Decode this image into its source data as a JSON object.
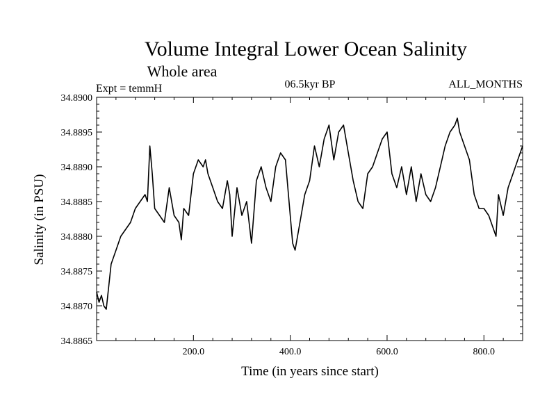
{
  "chart_data": {
    "type": "line",
    "title": "Volume Integral Lower Ocean Salinity",
    "subtitle": "Whole area",
    "left_label": "Expt = temmH",
    "center_label": "06.5kyr BP",
    "right_label": "ALL_MONTHS",
    "xlabel": "Time (in years since start)",
    "ylabel": "Salinity (in PSU)",
    "xlim": [
      0,
      880
    ],
    "ylim": [
      34.8865,
      34.89
    ],
    "x_ticks": [
      200,
      400,
      600,
      800
    ],
    "x_tick_labels": [
      "200.0",
      "400.0",
      "600.0",
      "800.0"
    ],
    "y_ticks": [
      34.8865,
      34.887,
      34.8875,
      34.888,
      34.8885,
      34.889,
      34.8895,
      34.89
    ],
    "y_tick_labels": [
      "34.8865",
      "34.8870",
      "34.8875",
      "34.8880",
      "34.8885",
      "34.8890",
      "34.8895",
      "34.8900"
    ],
    "grid": false,
    "series": [
      {
        "name": "Salinity",
        "color": "#000000",
        "x": [
          0,
          5,
          10,
          15,
          20,
          30,
          40,
          50,
          60,
          70,
          80,
          90,
          100,
          105,
          110,
          115,
          120,
          130,
          140,
          150,
          160,
          170,
          175,
          180,
          190,
          200,
          210,
          220,
          225,
          230,
          240,
          250,
          260,
          270,
          275,
          280,
          290,
          300,
          310,
          320,
          330,
          340,
          350,
          360,
          370,
          380,
          390,
          400,
          405,
          410,
          420,
          430,
          440,
          450,
          460,
          470,
          480,
          490,
          500,
          510,
          520,
          530,
          540,
          550,
          560,
          570,
          580,
          590,
          600,
          610,
          620,
          630,
          640,
          650,
          660,
          670,
          680,
          690,
          700,
          710,
          720,
          730,
          740,
          745,
          750,
          760,
          770,
          780,
          790,
          800,
          810,
          820,
          825,
          830,
          840,
          850,
          860,
          870,
          880
        ],
        "values": [
          34.8872,
          34.88705,
          34.88715,
          34.887,
          34.88695,
          34.8876,
          34.8878,
          34.888,
          34.8881,
          34.8882,
          34.8884,
          34.8885,
          34.8886,
          34.8885,
          34.8893,
          34.8889,
          34.8884,
          34.8883,
          34.8882,
          34.8887,
          34.8883,
          34.8882,
          34.88795,
          34.8884,
          34.8883,
          34.8889,
          34.8891,
          34.889,
          34.8891,
          34.8889,
          34.8887,
          34.8885,
          34.8884,
          34.8888,
          34.8886,
          34.888,
          34.8887,
          34.8883,
          34.8885,
          34.8879,
          34.8888,
          34.889,
          34.8887,
          34.8885,
          34.889,
          34.8892,
          34.8891,
          34.8883,
          34.8879,
          34.8878,
          34.8882,
          34.8886,
          34.8888,
          34.8893,
          34.889,
          34.8894,
          34.8896,
          34.8891,
          34.8895,
          34.8896,
          34.8892,
          34.8888,
          34.8885,
          34.8884,
          34.8889,
          34.889,
          34.8892,
          34.8894,
          34.8895,
          34.8889,
          34.8887,
          34.889,
          34.8886,
          34.889,
          34.8885,
          34.8889,
          34.8886,
          34.8885,
          34.8887,
          34.889,
          34.8893,
          34.8895,
          34.8896,
          34.8897,
          34.8895,
          34.8893,
          34.8891,
          34.8886,
          34.8884,
          34.8884,
          34.8883,
          34.8881,
          34.888,
          34.8886,
          34.8883,
          34.8887,
          34.8889,
          34.8891,
          34.8893
        ]
      }
    ]
  }
}
